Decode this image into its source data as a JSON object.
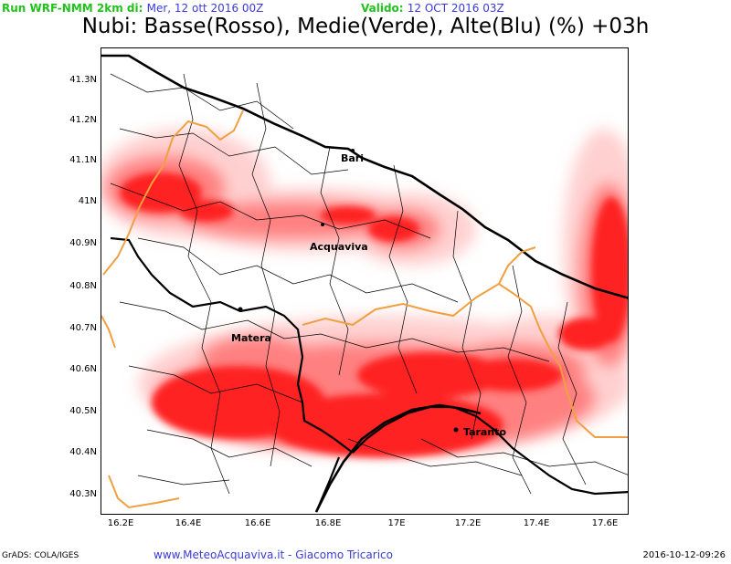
{
  "header": {
    "run_label": "Run WRF-NMM 2km di:",
    "run_date": "Mer, 12 ott 2016 00Z",
    "valid_label": "Valido:",
    "valid_date": "12 OCT 2016 03Z"
  },
  "title": "Nubi: Basse(Rosso), Medie(Verde), Alte(Blu) (%) +03h",
  "axes": {
    "lat_labels": [
      "41.3N",
      "41.2N",
      "41.1N",
      "41N",
      "40.9N",
      "40.8N",
      "40.7N",
      "40.6N",
      "40.5N",
      "40.4N",
      "40.3N"
    ],
    "lon_labels": [
      "16.2E",
      "16.4E",
      "16.6E",
      "16.8E",
      "17E",
      "17.2E",
      "17.4E",
      "17.6E"
    ]
  },
  "cities": {
    "bari": "Bari",
    "acquaviva": "Acquaviva",
    "matera": "Matera",
    "taranto": "Taranto"
  },
  "colors": {
    "low_clouds": "#ff2020",
    "region_border": "#f0a040",
    "province_border": "#000000",
    "coast": "#000000"
  },
  "footer": {
    "grads": "GrADS: COLA/IGES",
    "site": "www.MeteoAcquaviva.it  -  Giacomo Tricarico",
    "timestamp": "2016-10-12-09:26"
  }
}
